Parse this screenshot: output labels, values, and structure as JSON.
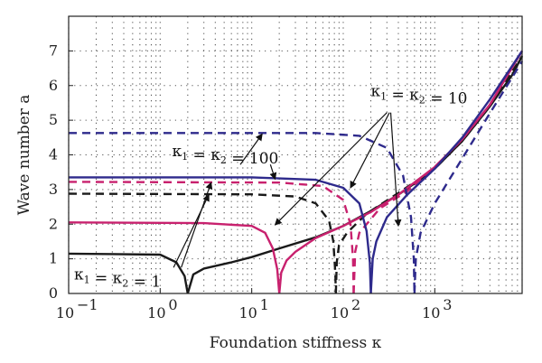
{
  "chart_data": {
    "type": "line",
    "xlabel": "Foundation stiffness κ",
    "ylabel": "Wave number a",
    "x_scale": "log",
    "xlim": [
      0.1,
      9000
    ],
    "ylim": [
      0,
      8
    ],
    "x_ticks": [
      {
        "value": 0.1,
        "base": "10",
        "exp": "−1"
      },
      {
        "value": 1,
        "base": "10",
        "exp": "0"
      },
      {
        "value": 10,
        "base": "10",
        "exp": "1"
      },
      {
        "value": 100,
        "base": "10",
        "exp": "2"
      },
      {
        "value": 1000,
        "base": "10",
        "exp": "3"
      }
    ],
    "y_ticks": [
      "0",
      "1",
      "2",
      "3",
      "4",
      "5",
      "6",
      "7"
    ],
    "grid": "dotted",
    "colors": {
      "black": "#1a1a1a",
      "magenta": "#c8216e",
      "blue": "#2e2a8c"
    },
    "series": [
      {
        "group": "κ1 = κ2 = 1",
        "color": "#1a1a1a",
        "dash": false,
        "points": [
          [
            0.1,
            1.15
          ],
          [
            1,
            1.12
          ],
          [
            1.5,
            0.9
          ],
          [
            1.85,
            0.5
          ],
          [
            2.0,
            0.0
          ]
        ]
      },
      {
        "group": "κ1 = κ2 = 1",
        "color": "#1a1a1a",
        "dash": false,
        "points": [
          [
            2.0,
            0.0
          ],
          [
            2.3,
            0.55
          ],
          [
            3,
            0.72
          ],
          [
            6,
            0.9
          ],
          [
            10,
            1.05
          ],
          [
            20,
            1.3
          ],
          [
            50,
            1.62
          ],
          [
            100,
            1.95
          ],
          [
            200,
            2.38
          ],
          [
            400,
            2.85
          ],
          [
            700,
            3.3
          ],
          [
            1000,
            3.6
          ],
          [
            2000,
            4.4
          ],
          [
            4000,
            5.4
          ],
          [
            7000,
            6.3
          ],
          [
            9000,
            6.85
          ]
        ]
      },
      {
        "group": "κ1 = κ2 = 1",
        "color": "#1a1a1a",
        "dash": true,
        "points": [
          [
            0.1,
            2.88
          ],
          [
            10,
            2.86
          ],
          [
            30,
            2.8
          ],
          [
            50,
            2.6
          ],
          [
            70,
            2.1
          ],
          [
            78,
            1.5
          ],
          [
            82,
            0.6
          ],
          [
            83,
            0.0
          ]
        ]
      },
      {
        "group": "κ1 = κ2 = 1",
        "color": "#1a1a1a",
        "dash": true,
        "points": [
          [
            83,
            0.0
          ],
          [
            85,
            0.9
          ],
          [
            90,
            1.4
          ],
          [
            110,
            1.75
          ],
          [
            180,
            2.3
          ],
          [
            400,
            2.9
          ],
          [
            1000,
            3.6
          ],
          [
            2000,
            4.4
          ],
          [
            4000,
            5.4
          ],
          [
            9000,
            6.85
          ]
        ]
      },
      {
        "group": "κ1 = κ2 = 10",
        "color": "#c8216e",
        "dash": false,
        "points": [
          [
            0.1,
            2.05
          ],
          [
            3,
            2.03
          ],
          [
            10,
            1.95
          ],
          [
            14,
            1.75
          ],
          [
            17,
            1.3
          ],
          [
            19,
            0.7
          ],
          [
            20,
            0.0
          ]
        ]
      },
      {
        "group": "κ1 = κ2 = 10",
        "color": "#c8216e",
        "dash": false,
        "points": [
          [
            20,
            0.0
          ],
          [
            21,
            0.6
          ],
          [
            24,
            0.95
          ],
          [
            30,
            1.2
          ],
          [
            50,
            1.6
          ],
          [
            100,
            1.95
          ],
          [
            200,
            2.35
          ],
          [
            400,
            2.85
          ],
          [
            1000,
            3.65
          ],
          [
            2000,
            4.45
          ],
          [
            4000,
            5.45
          ],
          [
            9000,
            7.0
          ]
        ]
      },
      {
        "group": "κ1 = κ2 = 10",
        "color": "#c8216e",
        "dash": true,
        "points": [
          [
            0.1,
            3.22
          ],
          [
            20,
            3.2
          ],
          [
            60,
            3.1
          ],
          [
            100,
            2.7
          ],
          [
            120,
            2.0
          ],
          [
            128,
            1.0
          ],
          [
            130,
            0.0
          ]
        ]
      },
      {
        "group": "κ1 = κ2 = 10",
        "color": "#c8216e",
        "dash": true,
        "points": [
          [
            130,
            0.0
          ],
          [
            135,
            1.2
          ],
          [
            150,
            1.75
          ],
          [
            250,
            2.45
          ],
          [
            500,
            2.95
          ],
          [
            1000,
            3.65
          ],
          [
            2000,
            4.45
          ],
          [
            4000,
            5.45
          ],
          [
            9000,
            7.0
          ]
        ]
      },
      {
        "group": "κ1 = κ2 = 100",
        "color": "#2e2a8c",
        "dash": false,
        "points": [
          [
            0.1,
            3.35
          ],
          [
            10,
            3.35
          ],
          [
            50,
            3.28
          ],
          [
            100,
            3.05
          ],
          [
            150,
            2.6
          ],
          [
            180,
            1.8
          ],
          [
            195,
            0.9
          ],
          [
            200,
            0.0
          ]
        ]
      },
      {
        "group": "κ1 = κ2 = 100",
        "color": "#2e2a8c",
        "dash": false,
        "points": [
          [
            200,
            0.0
          ],
          [
            210,
            1.0
          ],
          [
            230,
            1.5
          ],
          [
            300,
            2.2
          ],
          [
            500,
            2.85
          ],
          [
            1000,
            3.6
          ],
          [
            2000,
            4.5
          ],
          [
            4000,
            5.6
          ],
          [
            9000,
            7.0
          ]
        ]
      },
      {
        "group": "κ1 = κ2 = 100",
        "color": "#2e2a8c",
        "dash": true,
        "points": [
          [
            0.1,
            4.63
          ],
          [
            50,
            4.63
          ],
          [
            150,
            4.55
          ],
          [
            300,
            4.2
          ],
          [
            450,
            3.4
          ],
          [
            550,
            2.2
          ],
          [
            590,
            1.0
          ],
          [
            600,
            0.0
          ]
        ]
      },
      {
        "group": "κ1 = κ2 = 100",
        "color": "#2e2a8c",
        "dash": true,
        "points": [
          [
            600,
            0.0
          ],
          [
            620,
            1.0
          ],
          [
            700,
            1.75
          ],
          [
            1000,
            2.6
          ],
          [
            2000,
            3.9
          ],
          [
            4000,
            5.2
          ],
          [
            9000,
            6.7
          ]
        ]
      }
    ],
    "annotations": [
      {
        "id": "k100",
        "main": "κ",
        "parts": [
          {
            "t": "κ",
            "sub": "1"
          },
          {
            "t": " = κ",
            "sub": "2"
          },
          {
            "t": " = 100",
            "sub": ""
          }
        ],
        "label_at": [
          1.35,
          3.96
        ],
        "arrows": [
          {
            "from": [
              7.5,
              3.72
            ],
            "to": [
              13,
              4.6
            ]
          },
          {
            "from": [
              16,
              3.72
            ],
            "to": [
              18,
              3.3
            ]
          }
        ]
      },
      {
        "id": "k10",
        "parts": [
          {
            "t": "κ",
            "sub": "1"
          },
          {
            "t": " = κ",
            "sub": "2"
          },
          {
            "t": " = 10",
            "sub": ""
          }
        ],
        "label_at": [
          200,
          5.7
        ],
        "arrows": [
          {
            "from": [
              300,
              5.22
            ],
            "to": [
              18,
              1.98
            ]
          },
          {
            "from": [
              320,
              5.22
            ],
            "to": [
              120,
              3.05
            ]
          },
          {
            "from": [
              330,
              5.22
            ],
            "to": [
              400,
              1.95
            ]
          }
        ]
      },
      {
        "id": "k1",
        "parts": [
          {
            "t": "κ",
            "sub": "1"
          },
          {
            "t": " = κ",
            "sub": "2"
          },
          {
            "t": " = 1",
            "sub": ""
          }
        ],
        "label_at": [
          0.1,
          0.4
        ],
        "arrows": [
          {
            "from": [
              1.4,
              0.75
            ],
            "to": [
              3.4,
              2.85
            ]
          },
          {
            "from": [
              1.7,
              0.75
            ],
            "to": [
              3.6,
              3.2
            ]
          }
        ]
      }
    ]
  }
}
